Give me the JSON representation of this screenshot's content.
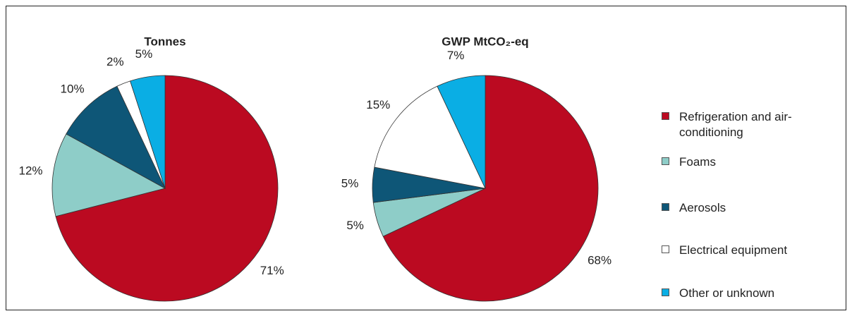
{
  "chart_data": [
    {
      "type": "pie",
      "title": "Tonnes",
      "categories": [
        "Refrigeration and air-conditioning",
        "Foams",
        "Aerosols",
        "Electrical equipment",
        "Other or unknown"
      ],
      "colors": [
        "#bb0a21",
        "#8ecdc8",
        "#0e5677",
        "#ffffff",
        "#0aaee4"
      ],
      "values": [
        71,
        12,
        10,
        2,
        5
      ],
      "value_labels": [
        "71%",
        "12%",
        "10%",
        "2%",
        "5%"
      ]
    },
    {
      "type": "pie",
      "title": "GWP MtCO₂-eq",
      "values": [
        68,
        5,
        5,
        15,
        7
      ],
      "value_labels": [
        "68%",
        "5%",
        "5%",
        "15%",
        "7%"
      ]
    }
  ]
}
